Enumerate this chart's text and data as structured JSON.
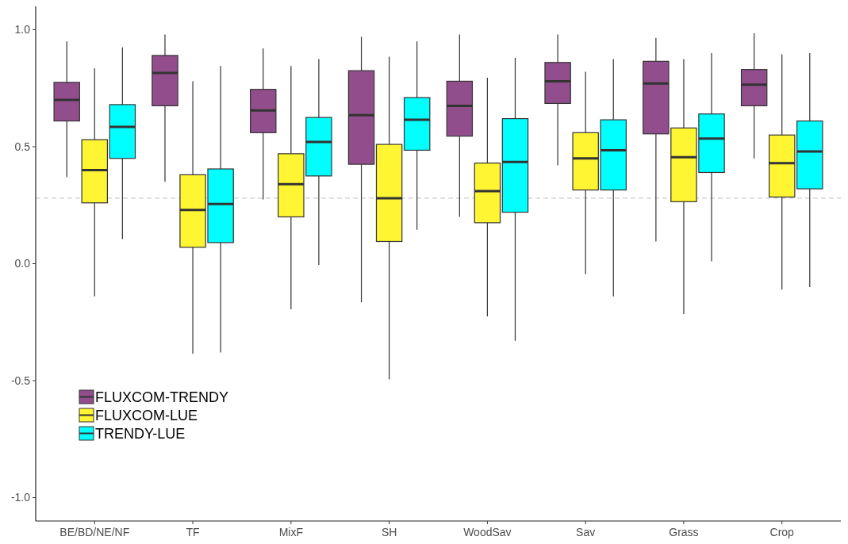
{
  "chart_data": {
    "type": "box",
    "categories": [
      "BE/BD/NE/NF",
      "TF",
      "MixF",
      "SH",
      "WoodSav",
      "Sav",
      "Grass",
      "Crop"
    ],
    "ylim": [
      -1.1,
      1.1
    ],
    "yticks": [
      {
        "value": -1,
        "label": "-1.0"
      },
      {
        "value": -0.5,
        "label": "-0.5"
      },
      {
        "value": 0,
        "label": "0.0"
      },
      {
        "value": 0.5,
        "label": "0.5"
      },
      {
        "value": 1,
        "label": "1.0"
      }
    ],
    "grid": false,
    "legend": "bottom left",
    "ref_lines": [
      {
        "axis": "y",
        "value": 0.28,
        "color": "#cccccc",
        "line_style": "dashed"
      }
    ],
    "series": [
      {
        "name": "FLUXCOM-TRENDY",
        "color": "#924e8c",
        "boxes": [
          {
            "low": 0.37,
            "q1": 0.61,
            "median": 0.7,
            "q3": 0.775,
            "high": 0.95
          },
          {
            "low": 0.35,
            "q1": 0.675,
            "median": 0.815,
            "q3": 0.89,
            "high": 0.98
          },
          {
            "low": 0.275,
            "q1": 0.56,
            "median": 0.655,
            "q3": 0.745,
            "high": 0.92
          },
          {
            "low": -0.165,
            "q1": 0.425,
            "median": 0.635,
            "q3": 0.825,
            "high": 0.97
          },
          {
            "low": 0.2,
            "q1": 0.545,
            "median": 0.675,
            "q3": 0.78,
            "high": 0.98
          },
          {
            "low": 0.42,
            "q1": 0.685,
            "median": 0.78,
            "q3": 0.86,
            "high": 0.98
          },
          {
            "low": 0.095,
            "q1": 0.555,
            "median": 0.77,
            "q3": 0.865,
            "high": 0.965
          },
          {
            "low": 0.45,
            "q1": 0.675,
            "median": 0.765,
            "q3": 0.83,
            "high": 0.985
          }
        ]
      },
      {
        "name": "FLUXCOM-LUE",
        "color": "#fff533",
        "boxes": [
          {
            "low": -0.14,
            "q1": 0.26,
            "median": 0.4,
            "q3": 0.53,
            "high": 0.835
          },
          {
            "low": -0.385,
            "q1": 0.07,
            "median": 0.23,
            "q3": 0.38,
            "high": 0.78
          },
          {
            "low": -0.195,
            "q1": 0.2,
            "median": 0.34,
            "q3": 0.47,
            "high": 0.845
          },
          {
            "low": -0.495,
            "q1": 0.095,
            "median": 0.28,
            "q3": 0.51,
            "high": 0.885
          },
          {
            "low": -0.225,
            "q1": 0.175,
            "median": 0.31,
            "q3": 0.43,
            "high": 0.795
          },
          {
            "low": -0.045,
            "q1": 0.315,
            "median": 0.45,
            "q3": 0.56,
            "high": 0.82
          },
          {
            "low": -0.215,
            "q1": 0.265,
            "median": 0.455,
            "q3": 0.58,
            "high": 0.875
          },
          {
            "low": -0.11,
            "q1": 0.285,
            "median": 0.43,
            "q3": 0.55,
            "high": 0.895
          }
        ]
      },
      {
        "name": "TRENDY-LUE",
        "color": "#00ffff",
        "boxes": [
          {
            "low": 0.105,
            "q1": 0.45,
            "median": 0.585,
            "q3": 0.68,
            "high": 0.925
          },
          {
            "low": -0.38,
            "q1": 0.09,
            "median": 0.255,
            "q3": 0.405,
            "high": 0.845
          },
          {
            "low": -0.005,
            "q1": 0.375,
            "median": 0.52,
            "q3": 0.625,
            "high": 0.875
          },
          {
            "low": 0.145,
            "q1": 0.485,
            "median": 0.615,
            "q3": 0.71,
            "high": 0.95
          },
          {
            "low": -0.33,
            "q1": 0.22,
            "median": 0.435,
            "q3": 0.62,
            "high": 0.88
          },
          {
            "low": -0.14,
            "q1": 0.315,
            "median": 0.485,
            "q3": 0.615,
            "high": 0.875
          },
          {
            "low": 0.01,
            "q1": 0.39,
            "median": 0.535,
            "q3": 0.64,
            "high": 0.9
          },
          {
            "low": -0.1,
            "q1": 0.32,
            "median": 0.48,
            "q3": 0.61,
            "high": 0.9
          }
        ]
      }
    ]
  }
}
